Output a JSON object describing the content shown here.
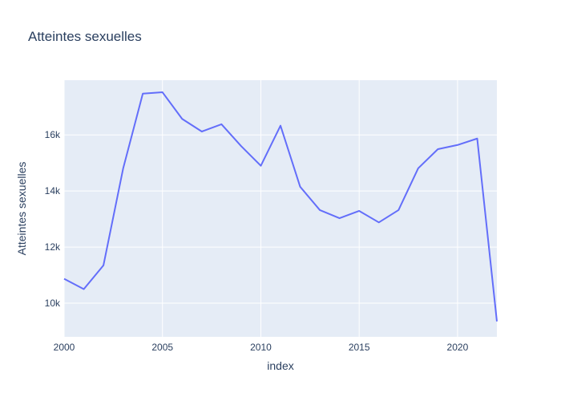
{
  "chart_data": {
    "type": "line",
    "title": "Atteintes sexuelles",
    "xlabel": "index",
    "ylabel": "Atteintes sexuelles",
    "xlim": [
      2000,
      2022
    ],
    "ylim": [
      8800,
      17950
    ],
    "x_ticks": [
      2000,
      2005,
      2010,
      2015,
      2020
    ],
    "y_ticks": [
      10000,
      12000,
      14000,
      16000
    ],
    "y_tick_labels": [
      "10k",
      "12k",
      "14k",
      "16k"
    ],
    "grid": true,
    "legend": "none",
    "colors": {
      "line": "#636efa",
      "plot_bg": "#e5ecf6",
      "grid": "#ffffff",
      "text": "#2a3f5f"
    },
    "series": [
      {
        "x": [
          2000,
          2001,
          2002,
          2003,
          2004,
          2005,
          2006,
          2007,
          2008,
          2009,
          2010,
          2011,
          2012,
          2013,
          2014,
          2015,
          2016,
          2017,
          2018,
          2019,
          2020,
          2021,
          2022
        ],
        "values": [
          10870,
          10500,
          11350,
          14800,
          17470,
          17520,
          16570,
          16120,
          16380,
          15600,
          14900,
          16330,
          14150,
          13320,
          13030,
          13290,
          12880,
          13320,
          14810,
          15490,
          15640,
          15870,
          9350
        ]
      }
    ]
  }
}
